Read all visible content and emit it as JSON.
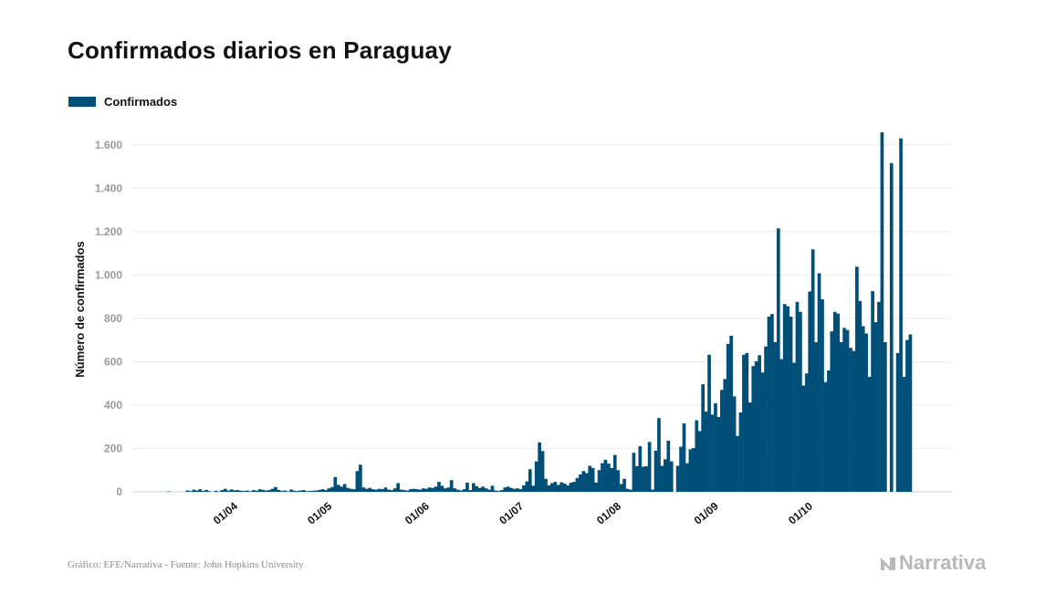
{
  "title": "Confirmados diarios en Paraguay",
  "legend": {
    "label": "Confirmados",
    "color": "#004f78"
  },
  "footer": {
    "source": "Gráfico: EFE/Narrativa - Fuente: John Hopkins University",
    "logo_text": "Narrativa"
  },
  "chart_data": {
    "type": "bar",
    "ylabel": "Número de confirmados",
    "xlabel": "",
    "ylim": [
      0,
      1700
    ],
    "yticks": [
      0,
      200,
      400,
      600,
      800,
      1000,
      1200,
      1400,
      1600
    ],
    "ytick_labels": [
      "0",
      "200",
      "400",
      "600",
      "800",
      "1.000",
      "1.200",
      "1.400",
      "1.600"
    ],
    "xtick_labels": [
      "01/04",
      "01/05",
      "01/06",
      "01/07",
      "01/08",
      "01/09",
      "01/10"
    ],
    "xtick_day_index": [
      21,
      51,
      82,
      112,
      143,
      174,
      204
    ],
    "grid": true,
    "legend_position": "top-left",
    "series": [
      {
        "name": "Confirmados",
        "color": "#004f78",
        "values": [
          2,
          0,
          0,
          0,
          0,
          0,
          6,
          3,
          10,
          6,
          12,
          4,
          9,
          3,
          0,
          5,
          2,
          8,
          14,
          6,
          11,
          7,
          8,
          5,
          4,
          6,
          3,
          8,
          5,
          12,
          9,
          6,
          8,
          14,
          22,
          9,
          4,
          6,
          2,
          11,
          5,
          4,
          6,
          8,
          3,
          4,
          5,
          6,
          9,
          12,
          8,
          16,
          22,
          68,
          32,
          24,
          36,
          18,
          14,
          12,
          96,
          125,
          20,
          14,
          18,
          12,
          10,
          14,
          12,
          20,
          10,
          8,
          16,
          40,
          10,
          8,
          6,
          12,
          14,
          12,
          10,
          16,
          14,
          20,
          18,
          24,
          46,
          28,
          16,
          20,
          54,
          16,
          10,
          6,
          12,
          42,
          8,
          40,
          26,
          18,
          24,
          16,
          10,
          28,
          6,
          4,
          8,
          20,
          24,
          18,
          14,
          16,
          12,
          30,
          48,
          104,
          28,
          140,
          228,
          188,
          60,
          30,
          40,
          46,
          32,
          44,
          38,
          30,
          42,
          46,
          64,
          80,
          96,
          86,
          120,
          110,
          42,
          100,
          132,
          148,
          130,
          110,
          170,
          100,
          36,
          60,
          14,
          10,
          180,
          118,
          210,
          116,
          118,
          230,
          10,
          190,
          340,
          120,
          150,
          236,
          140,
          0,
          120,
          208,
          316,
          132,
          196,
          202,
          330,
          280,
          496,
          370,
          632,
          356,
          408,
          345,
          470,
          520,
          682,
          720,
          440,
          258,
          366,
          632,
          640,
          412,
          580,
          602,
          630,
          550,
          670,
          808,
          820,
          690,
          1215,
          612,
          866,
          856,
          808,
          595,
          876,
          830,
          490,
          546,
          924,
          1118,
          690,
          1008,
          888,
          506,
          560,
          740,
          830,
          822,
          690,
          756,
          746,
          664,
          650,
          1038,
          880,
          764,
          730,
          530,
          926,
          782,
          876,
          1658,
          690,
          0,
          1516,
          0,
          640,
          1630,
          530,
          700,
          726
        ]
      }
    ]
  }
}
